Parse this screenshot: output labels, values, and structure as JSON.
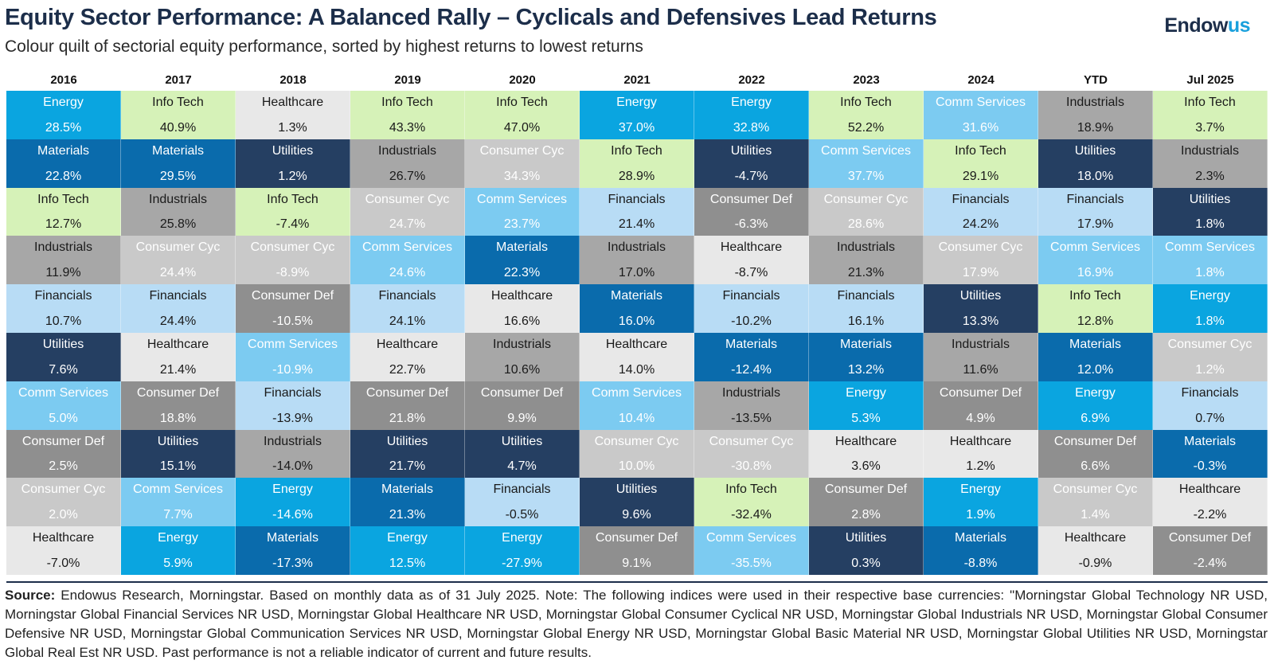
{
  "header": {
    "title": "Equity Sector Performance: A Balanced Rally – Cyclicals and Defensives Lead Returns",
    "subtitle": "Colour quilt of sectorial equity performance, sorted by highest returns to lowest returns",
    "logo": "Endowus"
  },
  "sector_colors": {
    "Energy": {
      "bg": "#0aa5e0",
      "fg": "#ffffff"
    },
    "Info Tech": {
      "bg": "#d6f2b8",
      "fg": "#1a1a1a"
    },
    "Healthcare": {
      "bg": "#e8e8e8",
      "fg": "#1a1a1a"
    },
    "Materials": {
      "bg": "#0a6bac",
      "fg": "#ffffff"
    },
    "Utilities": {
      "bg": "#253f62",
      "fg": "#ffffff"
    },
    "Industrials": {
      "bg": "#a7a7a7",
      "fg": "#1a1a1a"
    },
    "Consumer Cyc": {
      "bg": "#c9c9c9",
      "fg": "#ffffff"
    },
    "Comm Services": {
      "bg": "#7ccbf1",
      "fg": "#ffffff"
    },
    "Financials": {
      "bg": "#b8dcf5",
      "fg": "#1a1a1a"
    },
    "Consumer Def": {
      "bg": "#8f8f8f",
      "fg": "#ffffff"
    }
  },
  "chart_data": {
    "type": "table",
    "title": "Equity Sector Performance: A Balanced Rally – Cyclicals and Defensives Lead Returns",
    "columns": [
      {
        "label": "2016",
        "cells": [
          {
            "sector": "Energy",
            "value": "28.5%"
          },
          {
            "sector": "Materials",
            "value": "22.8%"
          },
          {
            "sector": "Info Tech",
            "value": "12.7%"
          },
          {
            "sector": "Industrials",
            "value": "11.9%"
          },
          {
            "sector": "Financials",
            "value": "10.7%"
          },
          {
            "sector": "Utilities",
            "value": "7.6%"
          },
          {
            "sector": "Comm Services",
            "value": "5.0%"
          },
          {
            "sector": "Consumer Def",
            "value": "2.5%"
          },
          {
            "sector": "Consumer Cyc",
            "value": "2.0%"
          },
          {
            "sector": "Healthcare",
            "value": "-7.0%"
          }
        ]
      },
      {
        "label": "2017",
        "cells": [
          {
            "sector": "Info Tech",
            "value": "40.9%"
          },
          {
            "sector": "Materials",
            "value": "29.5%"
          },
          {
            "sector": "Industrials",
            "value": "25.8%"
          },
          {
            "sector": "Consumer Cyc",
            "value": "24.4%"
          },
          {
            "sector": "Financials",
            "value": "24.4%"
          },
          {
            "sector": "Healthcare",
            "value": "21.4%"
          },
          {
            "sector": "Consumer Def",
            "value": "18.8%"
          },
          {
            "sector": "Utilities",
            "value": "15.1%"
          },
          {
            "sector": "Comm Services",
            "value": "7.7%"
          },
          {
            "sector": "Energy",
            "value": "5.9%"
          }
        ]
      },
      {
        "label": "2018",
        "cells": [
          {
            "sector": "Healthcare",
            "value": "1.3%"
          },
          {
            "sector": "Utilities",
            "value": "1.2%"
          },
          {
            "sector": "Info Tech",
            "value": "-7.4%"
          },
          {
            "sector": "Consumer Cyc",
            "value": "-8.9%"
          },
          {
            "sector": "Consumer Def",
            "value": "-10.5%"
          },
          {
            "sector": "Comm Services",
            "value": "-10.9%"
          },
          {
            "sector": "Financials",
            "value": "-13.9%"
          },
          {
            "sector": "Industrials",
            "value": "-14.0%"
          },
          {
            "sector": "Energy",
            "value": "-14.6%"
          },
          {
            "sector": "Materials",
            "value": "-17.3%"
          }
        ]
      },
      {
        "label": "2019",
        "cells": [
          {
            "sector": "Info Tech",
            "value": "43.3%"
          },
          {
            "sector": "Industrials",
            "value": "26.7%"
          },
          {
            "sector": "Consumer Cyc",
            "value": "24.7%"
          },
          {
            "sector": "Comm Services",
            "value": "24.6%"
          },
          {
            "sector": "Financials",
            "value": "24.1%"
          },
          {
            "sector": "Healthcare",
            "value": "22.7%"
          },
          {
            "sector": "Consumer Def",
            "value": "21.8%"
          },
          {
            "sector": "Utilities",
            "value": "21.7%"
          },
          {
            "sector": "Materials",
            "value": "21.3%"
          },
          {
            "sector": "Energy",
            "value": "12.5%"
          }
        ]
      },
      {
        "label": "2020",
        "cells": [
          {
            "sector": "Info Tech",
            "value": "47.0%"
          },
          {
            "sector": "Consumer Cyc",
            "value": "34.3%"
          },
          {
            "sector": "Comm Services",
            "value": "23.7%"
          },
          {
            "sector": "Materials",
            "value": "22.3%"
          },
          {
            "sector": "Healthcare",
            "value": "16.6%"
          },
          {
            "sector": "Industrials",
            "value": "10.6%"
          },
          {
            "sector": "Consumer Def",
            "value": "9.9%"
          },
          {
            "sector": "Utilities",
            "value": "4.7%"
          },
          {
            "sector": "Financials",
            "value": "-0.5%"
          },
          {
            "sector": "Energy",
            "value": "-27.9%"
          }
        ]
      },
      {
        "label": "2021",
        "cells": [
          {
            "sector": "Energy",
            "value": "37.0%"
          },
          {
            "sector": "Info Tech",
            "value": "28.9%"
          },
          {
            "sector": "Financials",
            "value": "21.4%"
          },
          {
            "sector": "Industrials",
            "value": "17.0%"
          },
          {
            "sector": "Materials",
            "value": "16.0%"
          },
          {
            "sector": "Healthcare",
            "value": "14.0%"
          },
          {
            "sector": "Comm Services",
            "value": "10.4%"
          },
          {
            "sector": "Consumer Cyc",
            "value": "10.0%"
          },
          {
            "sector": "Utilities",
            "value": "9.6%"
          },
          {
            "sector": "Consumer Def",
            "value": "9.1%"
          }
        ]
      },
      {
        "label": "2022",
        "cells": [
          {
            "sector": "Energy",
            "value": "32.8%"
          },
          {
            "sector": "Utilities",
            "value": "-4.7%"
          },
          {
            "sector": "Consumer Def",
            "value": "-6.3%"
          },
          {
            "sector": "Healthcare",
            "value": "-8.7%"
          },
          {
            "sector": "Financials",
            "value": "-10.2%"
          },
          {
            "sector": "Materials",
            "value": "-12.4%"
          },
          {
            "sector": "Industrials",
            "value": "-13.5%"
          },
          {
            "sector": "Consumer Cyc",
            "value": "-30.8%"
          },
          {
            "sector": "Info Tech",
            "value": "-32.4%"
          },
          {
            "sector": "Comm Services",
            "value": "-35.5%"
          }
        ]
      },
      {
        "label": "2023",
        "cells": [
          {
            "sector": "Info Tech",
            "value": "52.2%"
          },
          {
            "sector": "Comm Services",
            "value": "37.7%"
          },
          {
            "sector": "Consumer Cyc",
            "value": "28.6%"
          },
          {
            "sector": "Industrials",
            "value": "21.3%"
          },
          {
            "sector": "Financials",
            "value": "16.1%"
          },
          {
            "sector": "Materials",
            "value": "13.2%"
          },
          {
            "sector": "Energy",
            "value": "5.3%"
          },
          {
            "sector": "Healthcare",
            "value": "3.6%"
          },
          {
            "sector": "Consumer Def",
            "value": "2.8%"
          },
          {
            "sector": "Utilities",
            "value": "0.3%"
          }
        ]
      },
      {
        "label": "2024",
        "cells": [
          {
            "sector": "Comm Services",
            "value": "31.6%"
          },
          {
            "sector": "Info Tech",
            "value": "29.1%"
          },
          {
            "sector": "Financials",
            "value": "24.2%"
          },
          {
            "sector": "Consumer Cyc",
            "value": "17.9%"
          },
          {
            "sector": "Utilities",
            "value": "13.3%"
          },
          {
            "sector": "Industrials",
            "value": "11.6%"
          },
          {
            "sector": "Consumer Def",
            "value": "4.9%"
          },
          {
            "sector": "Healthcare",
            "value": "1.2%"
          },
          {
            "sector": "Energy",
            "value": "1.9%"
          },
          {
            "sector": "Materials",
            "value": "-8.8%"
          }
        ]
      },
      {
        "label": "YTD",
        "cells": [
          {
            "sector": "Industrials",
            "value": "18.9%"
          },
          {
            "sector": "Utilities",
            "value": "18.0%"
          },
          {
            "sector": "Financials",
            "value": "17.9%"
          },
          {
            "sector": "Comm Services",
            "value": "16.9%"
          },
          {
            "sector": "Info Tech",
            "value": "12.8%"
          },
          {
            "sector": "Materials",
            "value": "12.0%"
          },
          {
            "sector": "Energy",
            "value": "6.9%"
          },
          {
            "sector": "Consumer Def",
            "value": "6.6%"
          },
          {
            "sector": "Consumer Cyc",
            "value": "1.4%"
          },
          {
            "sector": "Healthcare",
            "value": "-0.9%"
          }
        ]
      },
      {
        "label": "Jul 2025",
        "cells": [
          {
            "sector": "Info Tech",
            "value": "3.7%"
          },
          {
            "sector": "Industrials",
            "value": "2.3%"
          },
          {
            "sector": "Utilities",
            "value": "1.8%"
          },
          {
            "sector": "Comm Services",
            "value": "1.8%"
          },
          {
            "sector": "Energy",
            "value": "1.8%"
          },
          {
            "sector": "Consumer Cyc",
            "value": "1.2%"
          },
          {
            "sector": "Financials",
            "value": "0.7%"
          },
          {
            "sector": "Materials",
            "value": "-0.3%"
          },
          {
            "sector": "Healthcare",
            "value": "-2.2%"
          },
          {
            "sector": "Consumer Def",
            "value": "-2.4%"
          }
        ]
      }
    ]
  },
  "footer": {
    "source_label": "Source:",
    "source_text": " Endowus Research, Morningstar. Based on monthly data as of 31 July 2025. Note: The following indices were used in their respective base currencies: \"Morningstar Global Technology NR USD, Morningstar Global Financial Services NR USD, Morningstar Global Healthcare NR USD, Morningstar Global Consumer Cyclical NR USD, Morningstar Global Industrials NR USD, Morningstar Global Consumer Defensive NR USD, Morningstar Global Communication Services NR USD, Morningstar Global Energy NR USD, Morningstar Global Basic Material NR USD, Morningstar Global Utilities NR USD, Morningstar Global Real Est NR USD. Past performance is not a reliable indicator of current and future results."
  }
}
